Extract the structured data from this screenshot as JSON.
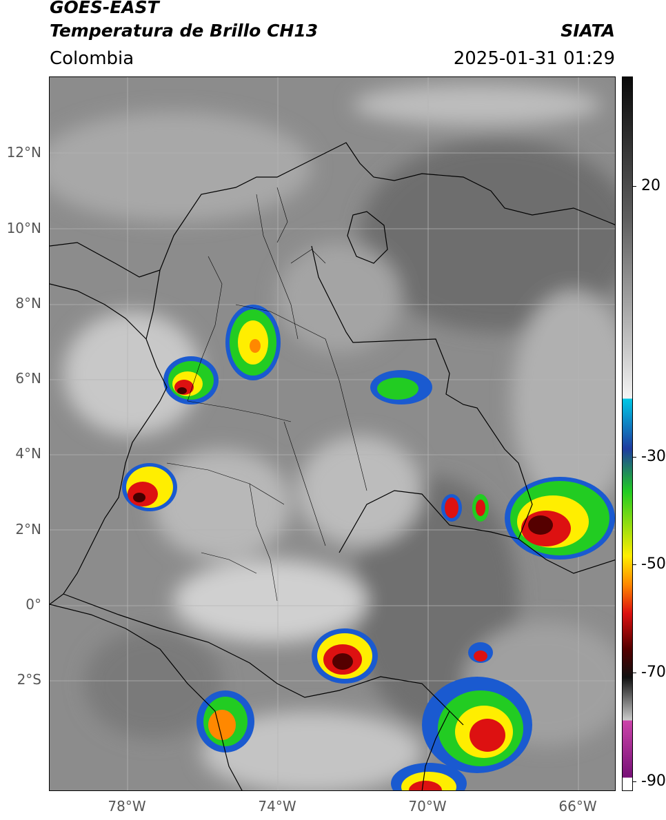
{
  "header": {
    "satellite": "GOES-EAST",
    "product": "Temperatura de Brillo CH13",
    "organization": "SIATA",
    "region": "Colombia",
    "datetime": "2025-01-31 01:29"
  },
  "map": {
    "lat_labels": [
      "12°N",
      "10°N",
      "8°N",
      "6°N",
      "4°N",
      "2°N",
      "0°",
      "2°S"
    ],
    "lon_labels": [
      "78°W",
      "74°W",
      "70°W",
      "66°W"
    ]
  },
  "colorbar": {
    "tick_labels": [
      "20",
      "-30",
      "-50",
      "-70",
      "-90"
    ],
    "colors": {
      "warm_gray_top": "#0a0a0a",
      "light_gray": "#f5f5f5",
      "cyan": "#00c8e6",
      "blue": "#1e3ca0",
      "green": "#22cc22",
      "yellow": "#ffee00",
      "orange": "#ff8800",
      "red": "#dd1111",
      "dark_red": "#550000",
      "magenta": "#cc44aa",
      "purple": "#771177"
    }
  }
}
